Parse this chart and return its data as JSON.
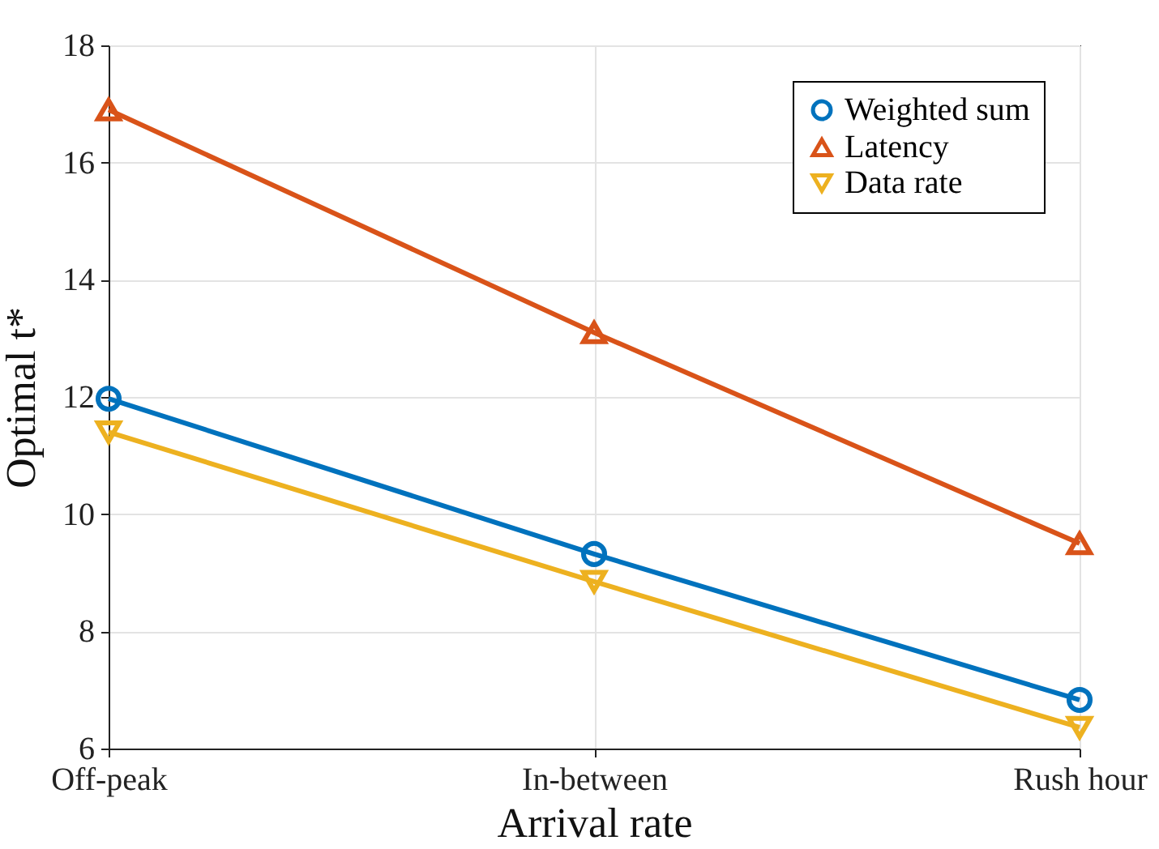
{
  "chart_data": {
    "type": "line",
    "xlabel": "Arrival rate",
    "ylabel": "Optimal t*",
    "categories": [
      "Off-peak",
      "In-between",
      "Rush hour"
    ],
    "series": [
      {
        "name": "Weighted sum",
        "color": "#0072bd",
        "marker": "circle",
        "values": [
          11.97,
          9.32,
          6.83
        ]
      },
      {
        "name": "Latency",
        "color": "#d95319",
        "marker": "triangle",
        "values": [
          16.9,
          13.1,
          9.5
        ]
      },
      {
        "name": "Data rate",
        "color": "#edb120",
        "marker": "triangle-down",
        "values": [
          11.4,
          8.85,
          6.36
        ]
      }
    ],
    "ylim": [
      6,
      18
    ],
    "yticks": [
      6,
      8,
      10,
      12,
      14,
      16,
      18
    ],
    "grid": true,
    "legend": "top right"
  }
}
